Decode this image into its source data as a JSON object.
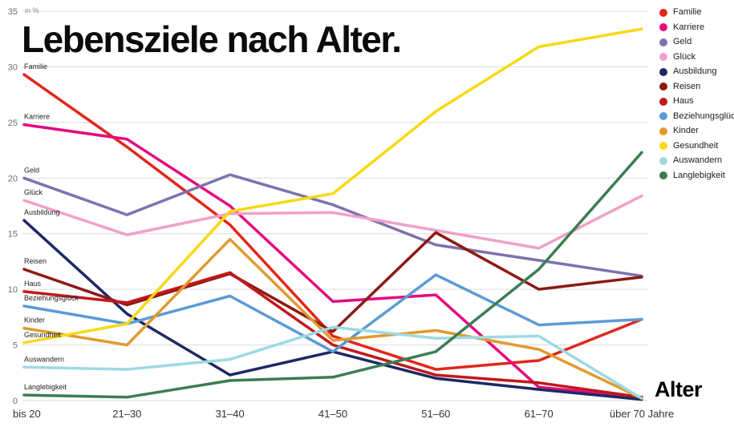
{
  "chart_data": {
    "type": "line",
    "title": "Lebensziele nach Alter.",
    "unit": "in %",
    "xlabel": "Alter",
    "categories": [
      "bis 20",
      "21–30",
      "31–40",
      "41–50",
      "51–60",
      "61–70",
      "über 70 Jahre"
    ],
    "y_ticks": [
      0,
      5,
      10,
      15,
      20,
      25,
      30,
      35
    ],
    "ylim": [
      0,
      35
    ],
    "grid": "horizontal",
    "legend_position": "top-right",
    "series": [
      {
        "name": "Familie",
        "color": "#e2261c",
        "values": [
          29.3,
          22.8,
          15.8,
          5.8,
          2.8,
          3.6,
          7.3
        ]
      },
      {
        "name": "Karriere",
        "color": "#e5097f",
        "values": [
          24.8,
          23.5,
          17.5,
          8.9,
          9.5,
          1.2,
          0.3
        ]
      },
      {
        "name": "Geld",
        "color": "#8071ad",
        "values": [
          20.0,
          16.7,
          20.3,
          17.6,
          14.0,
          12.6,
          11.2
        ]
      },
      {
        "name": "Glück",
        "color": "#f0a0c8",
        "values": [
          18.0,
          14.9,
          16.8,
          16.9,
          15.3,
          13.7,
          18.4
        ]
      },
      {
        "name": "Ausbildung",
        "color": "#1b2a63",
        "values": [
          16.2,
          7.8,
          2.3,
          4.4,
          2.0,
          1.0,
          0.1
        ]
      },
      {
        "name": "Reisen",
        "color": "#8c1a12",
        "values": [
          11.8,
          8.6,
          11.4,
          6.2,
          15.1,
          10.0,
          11.1
        ]
      },
      {
        "name": "Haus",
        "color": "#c0181c",
        "values": [
          9.8,
          8.8,
          11.5,
          5.0,
          2.3,
          1.6,
          0.3
        ]
      },
      {
        "name": "Beziehungsglück",
        "color": "#5b9bd5",
        "values": [
          8.5,
          6.9,
          9.4,
          4.4,
          11.3,
          6.8,
          7.3
        ]
      },
      {
        "name": "Kinder",
        "color": "#e09b2e",
        "values": [
          6.5,
          5.0,
          14.5,
          5.4,
          6.3,
          4.6,
          0.2
        ]
      },
      {
        "name": "Gesundheit",
        "color": "#f8d914",
        "values": [
          5.2,
          6.9,
          17.0,
          18.6,
          26.0,
          31.8,
          33.4
        ]
      },
      {
        "name": "Auswandern",
        "color": "#9ed9e4",
        "values": [
          3.0,
          2.8,
          3.7,
          6.6,
          5.6,
          5.8,
          0.2
        ]
      },
      {
        "name": "Langlebigkeit",
        "color": "#3c7d54",
        "values": [
          0.5,
          0.3,
          1.8,
          2.1,
          4.4,
          11.8,
          22.3
        ]
      }
    ]
  }
}
